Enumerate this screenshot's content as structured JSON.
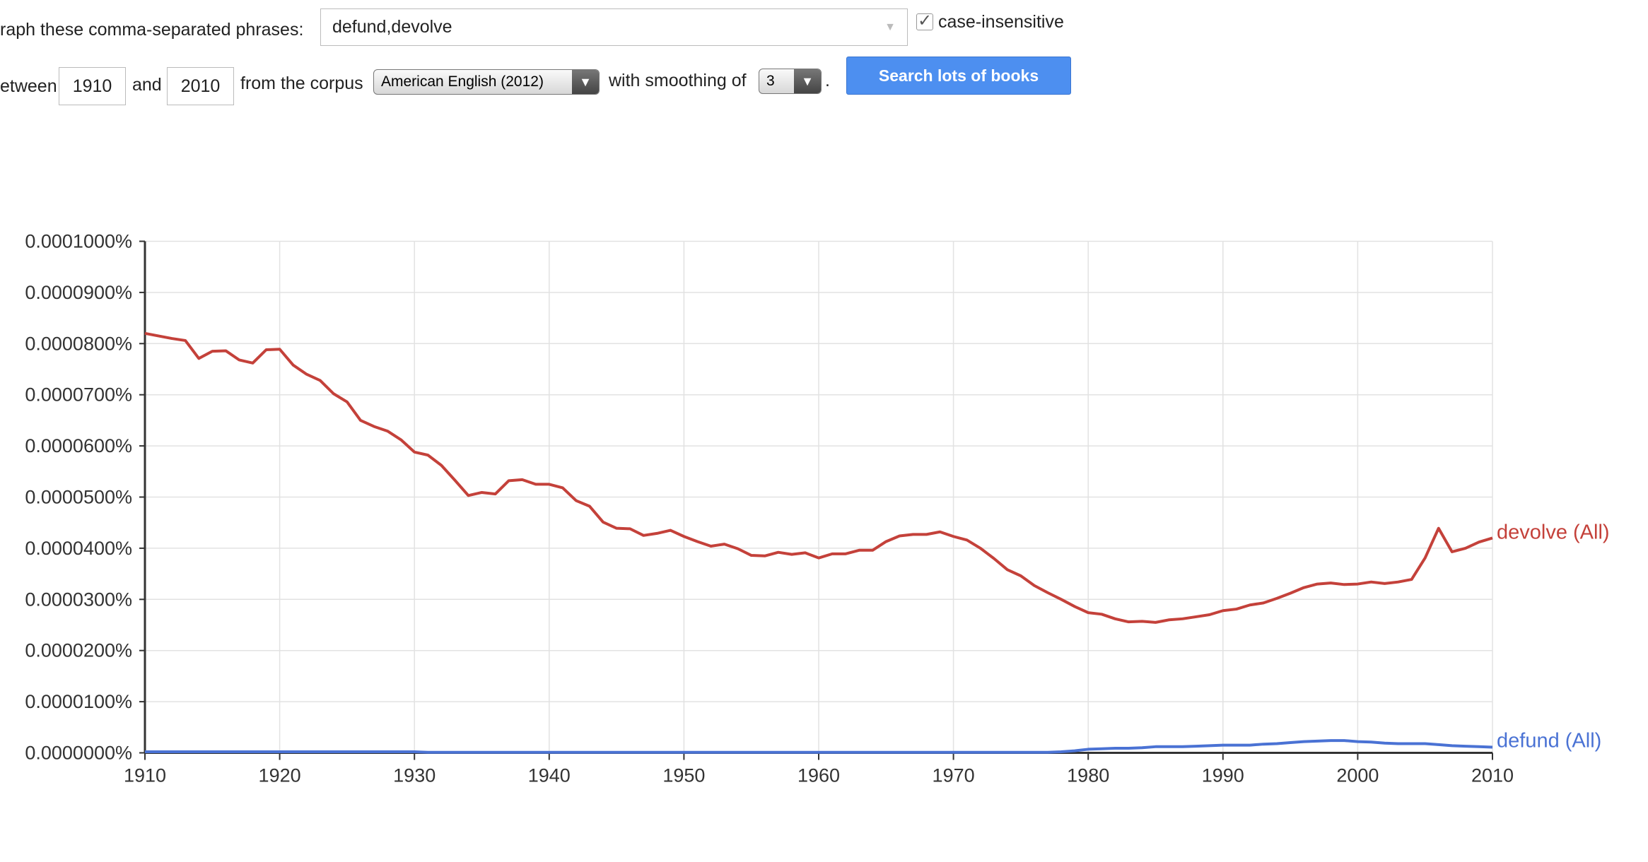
{
  "form": {
    "phrases_label": "raph these comma-separated phrases:",
    "phrases": "defund,devolve",
    "case_label": "case-insensitive",
    "between_label": "etween",
    "start_year": "1910",
    "and_label": "and",
    "end_year": "2010",
    "corpus_label": "from the corpus",
    "corpus": "American English (2012)",
    "smoothing_label": "with smoothing of",
    "smoothing": "3",
    "period": ".",
    "button": "Search lots of books"
  },
  "chart_data": {
    "type": "line",
    "x": [
      1910,
      1911,
      1912,
      1913,
      1914,
      1915,
      1916,
      1917,
      1918,
      1919,
      1920,
      1921,
      1922,
      1923,
      1924,
      1925,
      1926,
      1927,
      1928,
      1929,
      1930,
      1931,
      1932,
      1933,
      1934,
      1935,
      1936,
      1937,
      1938,
      1939,
      1940,
      1941,
      1942,
      1943,
      1944,
      1945,
      1946,
      1947,
      1948,
      1949,
      1950,
      1951,
      1952,
      1953,
      1954,
      1955,
      1956,
      1957,
      1958,
      1959,
      1960,
      1961,
      1962,
      1963,
      1964,
      1965,
      1966,
      1967,
      1968,
      1969,
      1970,
      1971,
      1972,
      1973,
      1974,
      1975,
      1976,
      1977,
      1978,
      1979,
      1980,
      1981,
      1982,
      1983,
      1984,
      1985,
      1986,
      1987,
      1988,
      1989,
      1990,
      1991,
      1992,
      1993,
      1994,
      1995,
      1996,
      1997,
      1998,
      1999,
      2000,
      2001,
      2002,
      2003,
      2004,
      2005,
      2006,
      2007,
      2008,
      2009,
      2010
    ],
    "series": [
      {
        "name": "devolve (All)",
        "color": "#c4413a",
        "values": [
          8.2e-05,
          8.15e-05,
          8.1e-05,
          8.06e-05,
          7.71e-05,
          7.85e-05,
          7.86e-05,
          7.68e-05,
          7.62e-05,
          7.88e-05,
          7.89e-05,
          7.58e-05,
          7.4e-05,
          7.28e-05,
          7.02e-05,
          6.86e-05,
          6.5e-05,
          6.38e-05,
          6.29e-05,
          6.12e-05,
          5.88e-05,
          5.82e-05,
          5.62e-05,
          5.33e-05,
          5.03e-05,
          5.09e-05,
          5.06e-05,
          5.32e-05,
          5.34e-05,
          5.25e-05,
          5.25e-05,
          5.18e-05,
          4.93e-05,
          4.82e-05,
          4.51e-05,
          4.39e-05,
          4.38e-05,
          4.25e-05,
          4.29e-05,
          4.35e-05,
          4.23e-05,
          4.13e-05,
          4.04e-05,
          4.08e-05,
          3.99e-05,
          3.86e-05,
          3.85e-05,
          3.92e-05,
          3.88e-05,
          3.91e-05,
          3.81e-05,
          3.89e-05,
          3.89e-05,
          3.96e-05,
          3.96e-05,
          4.13e-05,
          4.24e-05,
          4.27e-05,
          4.27e-05,
          4.32e-05,
          4.23e-05,
          4.16e-05,
          4e-05,
          3.8e-05,
          3.58e-05,
          3.46e-05,
          3.27e-05,
          3.13e-05,
          3e-05,
          2.86e-05,
          2.74e-05,
          2.71e-05,
          2.62e-05,
          2.56e-05,
          2.57e-05,
          2.55e-05,
          2.6e-05,
          2.62e-05,
          2.66e-05,
          2.7e-05,
          2.78e-05,
          2.81e-05,
          2.89e-05,
          2.93e-05,
          3.02e-05,
          3.12e-05,
          3.23e-05,
          3.3e-05,
          3.32e-05,
          3.29e-05,
          3.3e-05,
          3.34e-05,
          3.31e-05,
          3.34e-05,
          3.39e-05,
          3.81e-05,
          4.39e-05,
          3.93e-05,
          4e-05,
          4.12e-05,
          4.2e-05
        ]
      },
      {
        "name": "defund (All)",
        "color": "#4a72d4",
        "values": [
          2e-07,
          2e-07,
          2e-07,
          2e-07,
          2e-07,
          2e-07,
          2e-07,
          2e-07,
          2e-07,
          2e-07,
          2e-07,
          2e-07,
          2e-07,
          2e-07,
          2e-07,
          2e-07,
          2e-07,
          2e-07,
          2e-07,
          2e-07,
          2e-07,
          1e-07,
          1e-07,
          1e-07,
          1e-07,
          1e-07,
          1e-07,
          1e-07,
          1e-07,
          1e-07,
          1e-07,
          1e-07,
          1e-07,
          1e-07,
          1e-07,
          1e-07,
          1e-07,
          1e-07,
          1e-07,
          1e-07,
          1e-07,
          1e-07,
          1e-07,
          1e-07,
          1e-07,
          1e-07,
          1e-07,
          1e-07,
          1e-07,
          1e-07,
          1e-07,
          1e-07,
          1e-07,
          1e-07,
          1e-07,
          1e-07,
          1e-07,
          1e-07,
          1e-07,
          1e-07,
          1e-07,
          1e-07,
          1e-07,
          1e-07,
          1e-07,
          1e-07,
          1e-07,
          1e-07,
          2e-07,
          4e-07,
          7e-07,
          8e-07,
          9e-07,
          9e-07,
          1e-06,
          1.2e-06,
          1.2e-06,
          1.2e-06,
          1.3e-06,
          1.4e-06,
          1.5e-06,
          1.5e-06,
          1.5e-06,
          1.7e-06,
          1.8e-06,
          2e-06,
          2.2e-06,
          2.3e-06,
          2.4e-06,
          2.4e-06,
          2.2e-06,
          2.1e-06,
          1.9e-06,
          1.8e-06,
          1.8e-06,
          1.8e-06,
          1.6e-06,
          1.4e-06,
          1.3e-06,
          1.2e-06,
          1.1e-06
        ]
      }
    ],
    "xlim": [
      1910,
      2010
    ],
    "xticks": [
      1910,
      1920,
      1930,
      1940,
      1950,
      1960,
      1970,
      1980,
      1990,
      2000,
      2010
    ],
    "ylim": [
      0,
      0.0001
    ],
    "yticks": [
      {
        "value": 0,
        "label": "0.0000000%"
      },
      {
        "value": 1e-05,
        "label": "0.0000100%"
      },
      {
        "value": 2e-05,
        "label": "0.0000200%"
      },
      {
        "value": 3e-05,
        "label": "0.0000300%"
      },
      {
        "value": 4e-05,
        "label": "0.0000400%"
      },
      {
        "value": 5e-05,
        "label": "0.0000500%"
      },
      {
        "value": 6e-05,
        "label": "0.0000600%"
      },
      {
        "value": 7e-05,
        "label": "0.0000700%"
      },
      {
        "value": 8e-05,
        "label": "0.0000800%"
      },
      {
        "value": 9e-05,
        "label": "0.0000900%"
      },
      {
        "value": 0.0001,
        "label": "0.0001000%"
      }
    ],
    "grid": true
  }
}
